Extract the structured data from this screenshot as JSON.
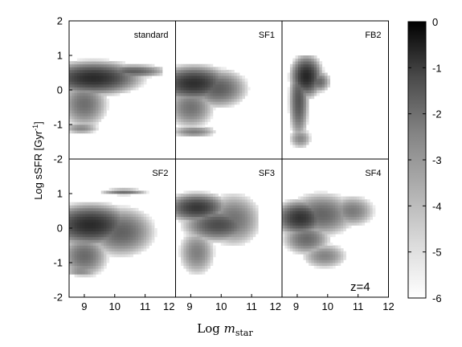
{
  "chart_data": {
    "type": "heatmap",
    "xlabel_main": "Log ",
    "xlabel_var": "m",
    "xlabel_sub": "star",
    "ylabel_main": "Log sSFR [Gyr",
    "ylabel_sup": "-1",
    "ylabel_close": "]",
    "annotation": "z=4",
    "xlim": [
      8.5,
      12
    ],
    "ylim": [
      -2,
      2
    ],
    "xticks_first": [
      "9",
      "10",
      "11",
      "12"
    ],
    "xticks_other": [
      "9",
      "10",
      "11",
      "12"
    ],
    "yticks_top": [
      "2",
      "1",
      "0",
      "-1",
      "-2"
    ],
    "yticks_bottom": [
      "1",
      "0",
      "-1",
      "-2"
    ],
    "colorbar": {
      "range": [
        -6,
        0
      ],
      "ticks": [
        "0",
        "-1",
        "-2",
        "-3",
        "-4",
        "-5",
        "-6"
      ]
    },
    "panels": [
      {
        "label": "standard",
        "blobs": [
          {
            "x": 9.3,
            "y": 0.35,
            "sx": 0.9,
            "sy": 0.28,
            "d": -1.0
          },
          {
            "x": 10.6,
            "y": 0.55,
            "sx": 0.7,
            "sy": 0.12,
            "d": -2.2
          },
          {
            "x": 9.0,
            "y": -0.4,
            "sx": 0.5,
            "sy": 0.45,
            "d": -2.6
          },
          {
            "x": 8.9,
            "y": -1.1,
            "sx": 0.4,
            "sy": 0.12,
            "d": -3.2
          }
        ],
        "extent": {
          "xmax": 11.6,
          "ymin": -1.3,
          "ymax": 1.15
        }
      },
      {
        "label": "SF1",
        "blobs": [
          {
            "x": 9.1,
            "y": 0.2,
            "sx": 0.7,
            "sy": 0.3,
            "d": -1.1
          },
          {
            "x": 9.9,
            "y": 0.05,
            "sx": 0.6,
            "sy": 0.35,
            "d": -2.2
          },
          {
            "x": 9.0,
            "y": -0.5,
            "sx": 0.5,
            "sy": 0.4,
            "d": -2.7
          },
          {
            "x": 9.1,
            "y": -1.2,
            "sx": 0.5,
            "sy": 0.12,
            "d": -3.0
          }
        ],
        "extent": {
          "xmax": 11.1,
          "ymin": -1.35,
          "ymax": 0.95
        }
      },
      {
        "label": "FB2",
        "blobs": [
          {
            "x": 9.3,
            "y": 0.4,
            "sx": 0.3,
            "sy": 0.35,
            "d": -0.9
          },
          {
            "x": 9.05,
            "y": -0.3,
            "sx": 0.2,
            "sy": 0.7,
            "d": -2.0
          },
          {
            "x": 9.7,
            "y": 0.25,
            "sx": 0.25,
            "sy": 0.2,
            "d": -2.4
          },
          {
            "x": 9.1,
            "y": -1.4,
            "sx": 0.25,
            "sy": 0.2,
            "d": -3.2
          }
        ],
        "extent": {
          "xmax": 10.2,
          "ymin": -1.7,
          "ymax": 1.0
        }
      },
      {
        "label": "SF2",
        "blobs": [
          {
            "x": 9.2,
            "y": 0.1,
            "sx": 0.8,
            "sy": 0.35,
            "d": -1.0
          },
          {
            "x": 10.2,
            "y": -0.1,
            "sx": 0.7,
            "sy": 0.45,
            "d": -2.3
          },
          {
            "x": 10.3,
            "y": 1.05,
            "sx": 0.5,
            "sy": 0.06,
            "d": -2.6
          },
          {
            "x": 9.0,
            "y": -0.8,
            "sx": 0.5,
            "sy": 0.4,
            "d": -2.5
          },
          {
            "x": 8.9,
            "y": -1.25,
            "sx": 0.4,
            "sy": 0.06,
            "d": -2.8
          }
        ],
        "extent": {
          "xmax": 11.5,
          "ymin": -1.4,
          "ymax": 1.15
        }
      },
      {
        "label": "SF3",
        "blobs": [
          {
            "x": 9.2,
            "y": 0.6,
            "sx": 0.6,
            "sy": 0.25,
            "d": -1.3
          },
          {
            "x": 9.9,
            "y": 0.1,
            "sx": 0.7,
            "sy": 0.3,
            "d": -1.8
          },
          {
            "x": 10.4,
            "y": 0.25,
            "sx": 0.6,
            "sy": 0.5,
            "d": -2.7
          },
          {
            "x": 9.2,
            "y": -0.7,
            "sx": 0.4,
            "sy": 0.45,
            "d": -3.0
          }
        ],
        "extent": {
          "xmax": 11.2,
          "ymin": -1.4,
          "ymax": 1.15
        }
      },
      {
        "label": "SF4",
        "blobs": [
          {
            "x": 9.1,
            "y": 0.3,
            "sx": 0.5,
            "sy": 0.3,
            "d": -1.2
          },
          {
            "x": 9.8,
            "y": 0.4,
            "sx": 0.7,
            "sy": 0.4,
            "d": -2.4
          },
          {
            "x": 10.8,
            "y": 0.5,
            "sx": 0.5,
            "sy": 0.3,
            "d": -2.9
          },
          {
            "x": 9.3,
            "y": -0.3,
            "sx": 0.5,
            "sy": 0.3,
            "d": -2.5
          },
          {
            "x": 9.9,
            "y": -0.8,
            "sx": 0.5,
            "sy": 0.25,
            "d": -3.1
          }
        ],
        "extent": {
          "xmax": 11.7,
          "ymin": -1.2,
          "ymax": 1.1
        }
      }
    ]
  }
}
